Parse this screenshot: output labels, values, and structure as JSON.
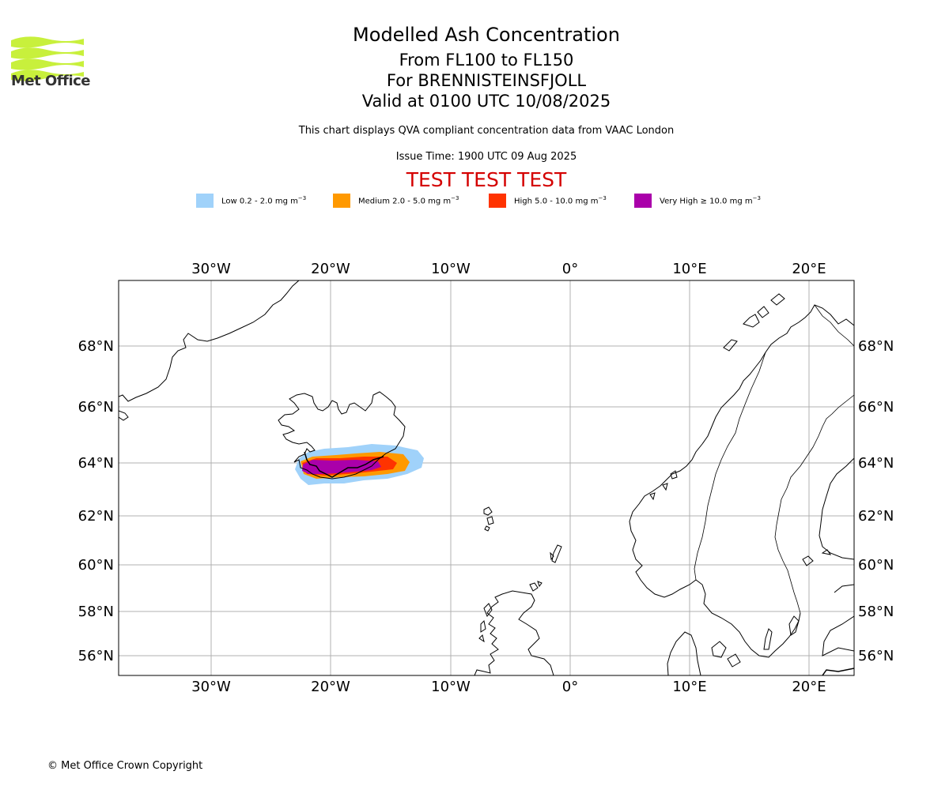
{
  "header": {
    "title": "Modelled Ash Concentration",
    "level": "From FL100 to FL150",
    "volcano": "For BRENNISTEINSFJOLL",
    "valid": "Valid at 0100 UTC 10/08/2025",
    "description": "This chart displays QVA compliant concentration data from VAAC London",
    "issue_time": "Issue Time: 1900 UTC 09 Aug 2025",
    "test_banner": "TEST TEST TEST"
  },
  "logo": {
    "text": "Met Office",
    "color": "#c8f03c"
  },
  "legend": [
    {
      "label": "Low 0.2 - 2.0 mg m",
      "color": "#a0d2fa"
    },
    {
      "label": "Medium 2.0 - 5.0 mg m",
      "color": "#ff9900"
    },
    {
      "label": "High 5.0 - 10.0 mg m",
      "color": "#ff3300"
    },
    {
      "label": "Very High  ≥  10.0 mg m",
      "color": "#aa00aa"
    }
  ],
  "legend_unit_exponent": "−3",
  "map": {
    "lon_labels": [
      "30°W",
      "20°W",
      "10°W",
      "0°",
      "10°E",
      "20°E"
    ],
    "lat_labels": [
      "68°N",
      "66°N",
      "64°N",
      "62°N",
      "60°N",
      "58°N",
      "56°N"
    ]
  },
  "footer": {
    "copyright": "© Met Office Crown Copyright"
  }
}
